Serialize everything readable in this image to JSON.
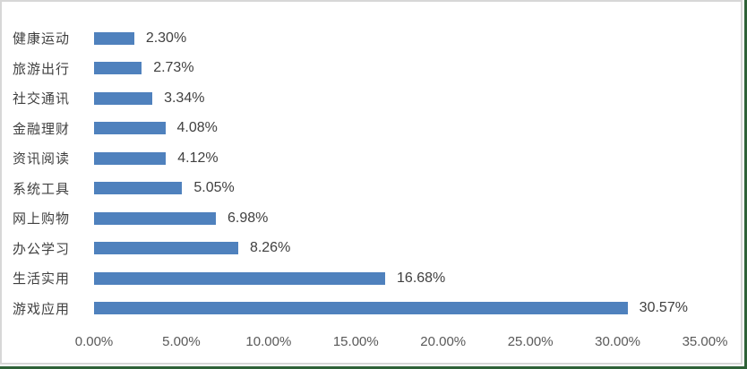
{
  "chart_data": {
    "type": "bar",
    "orientation": "horizontal",
    "title": "",
    "xlabel": "",
    "ylabel": "",
    "categories": [
      "健康运动",
      "旅游出行",
      "社交通讯",
      "金融理财",
      "资讯阅读",
      "系统工具",
      "网上购物",
      "办公学习",
      "生活实用",
      "游戏应用"
    ],
    "values": [
      2.3,
      2.73,
      3.34,
      4.08,
      4.12,
      5.05,
      6.98,
      8.26,
      16.68,
      30.57
    ],
    "data_labels": [
      "2.30%",
      "2.73%",
      "3.34%",
      "4.08%",
      "4.12%",
      "5.05%",
      "6.98%",
      "8.26%",
      "16.68%",
      "30.57%"
    ],
    "x_ticks": [
      "0.00%",
      "5.00%",
      "10.00%",
      "15.00%",
      "20.00%",
      "25.00%",
      "30.00%",
      "35.00%"
    ],
    "xlim": [
      0,
      35
    ],
    "grid": false,
    "legend": false,
    "data_label_position": "outside-end"
  },
  "style": {
    "bar_color": "#4F81BD",
    "category_label_color": "#404040",
    "data_label_color": "#404040",
    "axis_tick_color": "#595959",
    "frame_border_color": "#d7d7d7",
    "sheet_edge_green": "#2e6137",
    "background": "#ffffff"
  }
}
